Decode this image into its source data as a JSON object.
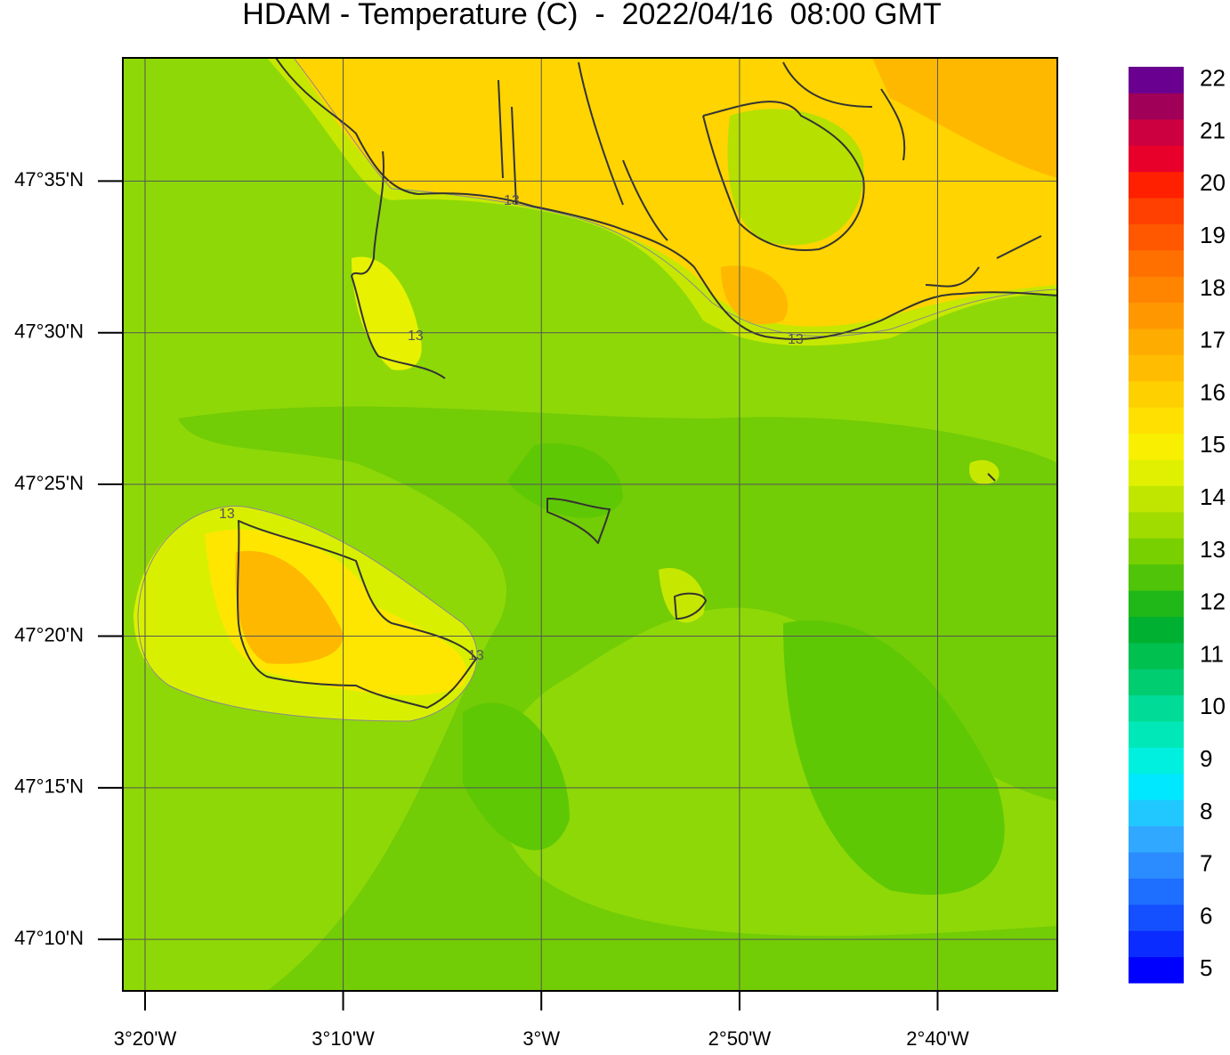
{
  "title": "HDAM - Temperature (C)  -  2022/04/16  08:00 GMT",
  "map": {
    "xlim": [
      -3.352,
      -2.566
    ],
    "ylim": [
      47.1384,
      47.651
    ],
    "lon_ticks": [
      {
        "value": -3.3333,
        "label": "3°20'W"
      },
      {
        "value": -3.1667,
        "label": "3°10'W"
      },
      {
        "value": -3,
        "label": "3°W"
      },
      {
        "value": -2.8333,
        "label": "2°50'W"
      },
      {
        "value": -2.6667,
        "label": "2°40'W"
      }
    ],
    "lat_ticks": [
      {
        "value": 47.5833,
        "label": "47°35'N"
      },
      {
        "value": 47.5,
        "label": "47°30'N"
      },
      {
        "value": 47.4167,
        "label": "47°25'N"
      },
      {
        "value": 47.3333,
        "label": "47°20'N"
      },
      {
        "value": 47.25,
        "label": "47°15'N"
      },
      {
        "value": 47.1667,
        "label": "47°10'N"
      }
    ],
    "contour_labels": [
      "13",
      "13",
      "13",
      "13",
      "13"
    ]
  },
  "colorbar": {
    "lim": [
      4.75,
      22.25
    ],
    "ticks": [
      5,
      6,
      7,
      8,
      9,
      10,
      11,
      12,
      13,
      14,
      15,
      16,
      17,
      18,
      19,
      20,
      21,
      22
    ],
    "colors": [
      "#0000ff",
      "#0a2cff",
      "#1450ff",
      "#1e6eff",
      "#2a8cff",
      "#30a8ff",
      "#20c8ff",
      "#00e8ff",
      "#00f0e0",
      "#00e8b8",
      "#00dc98",
      "#00cc70",
      "#00c050",
      "#00b030",
      "#20b818",
      "#50c408",
      "#78d000",
      "#a0dc00",
      "#c0e600",
      "#e0f000",
      "#f8f000",
      "#ffe000",
      "#ffd000",
      "#ffbc00",
      "#ffac00",
      "#ff9800",
      "#ff8400",
      "#ff7000",
      "#ff5800",
      "#ff4000",
      "#ff2000",
      "#e8002a",
      "#cc0040",
      "#a00058",
      "#6a0090"
    ]
  }
}
